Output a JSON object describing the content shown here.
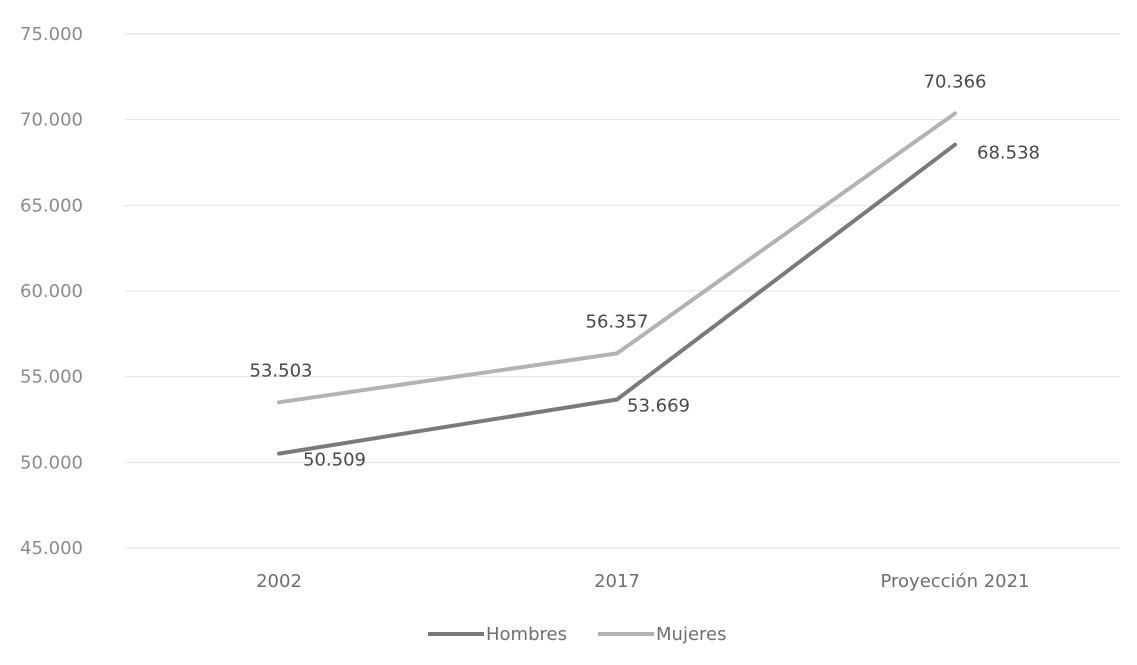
{
  "chart_data": {
    "type": "line",
    "categories": [
      "2002",
      "2017",
      "Proyección 2021"
    ],
    "series": [
      {
        "name": "Hombres",
        "values": [
          50509,
          53669,
          68538
        ],
        "color": "#7a7a7a",
        "labels": [
          "50.509",
          "53.669",
          "68.538"
        ]
      },
      {
        "name": "Mujeres",
        "values": [
          53503,
          56357,
          70366
        ],
        "color": "#b3b3b3",
        "labels": [
          "53.503",
          "56.357",
          "70.366"
        ]
      }
    ],
    "ylim": [
      45000,
      75000
    ],
    "yticks": [
      45000,
      50000,
      55000,
      60000,
      65000,
      70000,
      75000
    ],
    "ytick_labels": [
      "45.000",
      "50.000",
      "55.000",
      "60.000",
      "65.000",
      "70.000",
      "75.000"
    ],
    "grid": true,
    "legend_position": "bottom"
  }
}
